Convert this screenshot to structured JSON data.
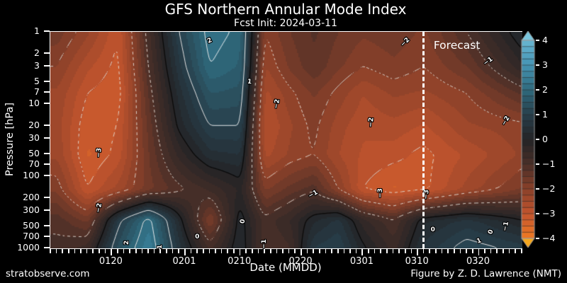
{
  "title": "GFS Northern Annular Mode Index",
  "subtitle": "Fcst Init: 2024-03-11",
  "footer": {
    "left": "stratobserve.com",
    "right": "Figure by Z. D. Lawrence (NMT)"
  },
  "colors": {
    "background": "#000000",
    "text": "#ffffff",
    "axis": "#ffffff",
    "contour_negative": "rgba(224,219,213,0.9)",
    "contour_zero": "#0a0a0a",
    "contour_positive": "rgba(236,236,236,0.95)",
    "forecast_line": "#ffffff",
    "colorbar_over_arrow": "#7ac6de",
    "colorbar_under_arrow": "#f5a71f"
  },
  "chart_data": {
    "type": "heatmap",
    "title": "GFS Northern Annular Mode Index",
    "subtitle": "Fcst Init: 2024-03-11",
    "xlabel": "Date (MMDD)",
    "ylabel": "Pressure [hPa]",
    "x_axis": {
      "start_date": "0110",
      "end_date": "0327",
      "span_days": 77,
      "tick_labels": [
        "0120",
        "0201",
        "0210",
        "0220",
        "0301",
        "0310",
        "0320"
      ],
      "tick_days": [
        10,
        22,
        31,
        41,
        51,
        60,
        70
      ]
    },
    "y_axis": {
      "scale": "log",
      "range_hpa": [
        1,
        1000
      ],
      "ticks_hpa": [
        1,
        2,
        3,
        5,
        7,
        10,
        20,
        30,
        50,
        70,
        100,
        200,
        300,
        500,
        700,
        1000
      ]
    },
    "forecast": {
      "line_day": 61,
      "label": "Forecast"
    },
    "colorbar": {
      "min": -4,
      "max": 4,
      "segment_step": 0.25,
      "tick_values": [
        4,
        3,
        2,
        1,
        0,
        -1,
        -2,
        -3,
        -4
      ],
      "anchor_colors": {
        "-4": "#f07a22",
        "-3": "#c2542e",
        "-2": "#8a4029",
        "-1": "#4a2f28",
        "0": "#232326",
        "1": "#28404c",
        "2": "#2f6a7d",
        "3": "#4594b4",
        "4": "#68b6d2"
      }
    },
    "grid": {
      "x_days": [
        1,
        6,
        11,
        16,
        21,
        26,
        31,
        35,
        39,
        43,
        47,
        51,
        56,
        61,
        68,
        77
      ],
      "pressures_hpa": [
        1,
        3,
        7,
        20,
        50,
        150,
        400,
        1000
      ],
      "nam_index_values": [
        [
          -1.6,
          -2.2,
          -3.0,
          -0.8,
          1.0,
          2.2,
          1.9,
          -2.0,
          -1.5,
          -1.2,
          -1.5,
          -1.7,
          -1.6,
          -1.8,
          -1.0,
          0.3
        ],
        [
          -2.0,
          -2.7,
          -3.1,
          -1.0,
          0.7,
          2.0,
          1.7,
          -2.3,
          -1.7,
          -1.3,
          -1.7,
          -2.0,
          -1.8,
          -2.0,
          -1.5,
          -0.3
        ],
        [
          -2.3,
          -3.0,
          -3.2,
          -1.2,
          0.4,
          1.5,
          1.4,
          -2.6,
          -2.1,
          -1.7,
          -2.1,
          -2.5,
          -2.2,
          -2.3,
          -2.0,
          -1.2
        ],
        [
          -2.4,
          -3.2,
          -3.0,
          -1.4,
          0.1,
          1.0,
          1.0,
          -2.8,
          -2.3,
          -1.9,
          -2.4,
          -2.7,
          -2.6,
          -2.8,
          -2.3,
          -2.1
        ],
        [
          -2.3,
          -3.3,
          -2.9,
          -1.5,
          -0.4,
          0.4,
          0.5,
          -2.6,
          -2.2,
          -2.0,
          -2.5,
          -2.8,
          -2.9,
          -3.1,
          -2.7,
          -2.2
        ],
        [
          -1.8,
          -3.0,
          -2.4,
          -1.6,
          -1.1,
          -0.7,
          -0.2,
          -1.8,
          -1.4,
          -1.1,
          -2.0,
          -3.0,
          -3.3,
          -3.1,
          -2.4,
          -1.7
        ],
        [
          -1.1,
          -1.6,
          0.8,
          2.2,
          0.2,
          -1.8,
          0.2,
          -0.9,
          -0.5,
          0.2,
          0.6,
          -0.4,
          -1.0,
          0.2,
          0.6,
          0.0
        ],
        [
          -0.9,
          -0.6,
          1.4,
          2.5,
          0.6,
          -0.8,
          0.3,
          -1.0,
          -0.8,
          0.8,
          1.0,
          0.1,
          -0.6,
          0.6,
          1.2,
          0.9
        ]
      ]
    },
    "contour_levels": {
      "negative_dashed": [
        -3,
        -2,
        -1
      ],
      "zero": [
        0
      ],
      "positive_solid": [
        1,
        2,
        3
      ]
    },
    "contour_labels": [
      {
        "text": "-3",
        "day": 8,
        "hpa": 48,
        "rot": -85
      },
      {
        "text": "-2",
        "day": 8,
        "hpa": 275,
        "rot": -80
      },
      {
        "text": "2",
        "day": 12.5,
        "hpa": 830,
        "rot": -90
      },
      {
        "text": "1",
        "day": 18,
        "hpa": 950,
        "rot": -90
      },
      {
        "text": "2",
        "day": 26,
        "hpa": 1.35,
        "rot": -25
      },
      {
        "text": "1",
        "day": 32.5,
        "hpa": 5,
        "rot": 5
      },
      {
        "text": "0",
        "day": 24,
        "hpa": 700,
        "rot": 0
      },
      {
        "text": "0",
        "day": 31.5,
        "hpa": 420,
        "rot": -80
      },
      {
        "text": "-1",
        "day": 35,
        "hpa": 870,
        "rot": -90
      },
      {
        "text": "-2",
        "day": 37,
        "hpa": 10,
        "rot": -80
      },
      {
        "text": "-1",
        "day": 43,
        "hpa": 180,
        "rot": -30
      },
      {
        "text": "-2",
        "day": 52.5,
        "hpa": 18,
        "rot": -85
      },
      {
        "text": "-3",
        "day": 54,
        "hpa": 170,
        "rot": -90
      },
      {
        "text": "-2",
        "day": 58,
        "hpa": 1.4,
        "rot": -45
      },
      {
        "text": "-3",
        "day": 61.5,
        "hpa": 180,
        "rot": -85
      },
      {
        "text": "0",
        "day": 62.5,
        "hpa": 550,
        "rot": 0
      },
      {
        "text": "-1",
        "day": 71.5,
        "hpa": 2.6,
        "rot": -35
      },
      {
        "text": "-2",
        "day": 74.5,
        "hpa": 17,
        "rot": -60
      },
      {
        "text": "1",
        "day": 70,
        "hpa": 800,
        "rot": -20
      },
      {
        "text": "0",
        "day": 72,
        "hpa": 600,
        "rot": -70
      },
      {
        "text": "-1",
        "day": 74.5,
        "hpa": 500,
        "rot": -80
      }
    ]
  }
}
